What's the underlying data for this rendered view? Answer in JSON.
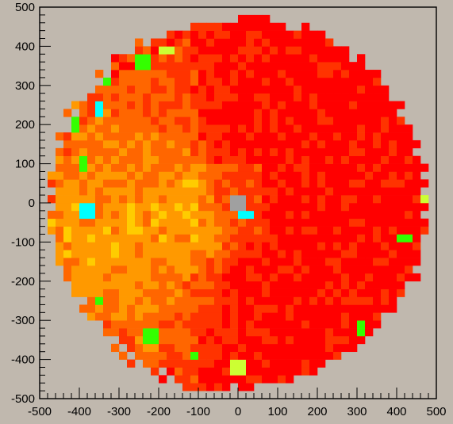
{
  "chart_data": {
    "type": "heatmap",
    "title": "",
    "xlabel": "",
    "ylabel": "",
    "xlim": [
      -500,
      500
    ],
    "ylim": [
      -500,
      500
    ],
    "grid": false,
    "x_ticks": [
      "-500",
      "-400",
      "-300",
      "-200",
      "-100",
      "0",
      "100",
      "200",
      "300",
      "400",
      "500"
    ],
    "y_ticks": [
      "500",
      "400",
      "300",
      "200",
      "100",
      "0",
      "-100",
      "-200",
      "-300",
      "-400",
      "-500"
    ],
    "bin_size": 20,
    "disk_radius": 475,
    "central_hole": {
      "x": 0,
      "y": 0,
      "radius": 10
    },
    "palette": {
      "background": "#c0b8ae",
      "red": "#ff0000",
      "red_orange": "#ff3300",
      "orange": "#ff6600",
      "light_orange": "#ff9900",
      "yellow_orange": "#ffcc00",
      "yellow": "#ffff00",
      "yellow_green": "#ccff33",
      "green": "#33ff00",
      "cyan": "#00ffff",
      "gray": "#a0a0a0"
    },
    "color_scale": [
      "#ff0000",
      "#ff3300",
      "#ff6600",
      "#ff9900",
      "#ffcc00",
      "#ffff00",
      "#ccff33",
      "#33ff00",
      "#00ffff"
    ],
    "hotspots": [
      {
        "x": -380,
        "y": -20,
        "level": 8
      },
      {
        "x": -390,
        "y": 100,
        "level": 7
      },
      {
        "x": -410,
        "y": 200,
        "level": 7
      },
      {
        "x": -350,
        "y": 240,
        "level": 8
      },
      {
        "x": -330,
        "y": 320,
        "level": 7
      },
      {
        "x": -240,
        "y": 360,
        "level": 7
      },
      {
        "x": -180,
        "y": 390,
        "level": 6
      },
      {
        "x": -350,
        "y": -250,
        "level": 7
      },
      {
        "x": -220,
        "y": -340,
        "level": 7
      },
      {
        "x": -110,
        "y": -390,
        "level": 7
      },
      {
        "x": 0,
        "y": -420,
        "level": 6
      },
      {
        "x": 20,
        "y": -30,
        "level": 8
      },
      {
        "x": -10,
        "y": 0,
        "level": 5
      },
      {
        "x": 420,
        "y": -90,
        "level": 7
      },
      {
        "x": 470,
        "y": 10,
        "level": 6
      },
      {
        "x": 310,
        "y": -320,
        "level": 7
      }
    ]
  }
}
